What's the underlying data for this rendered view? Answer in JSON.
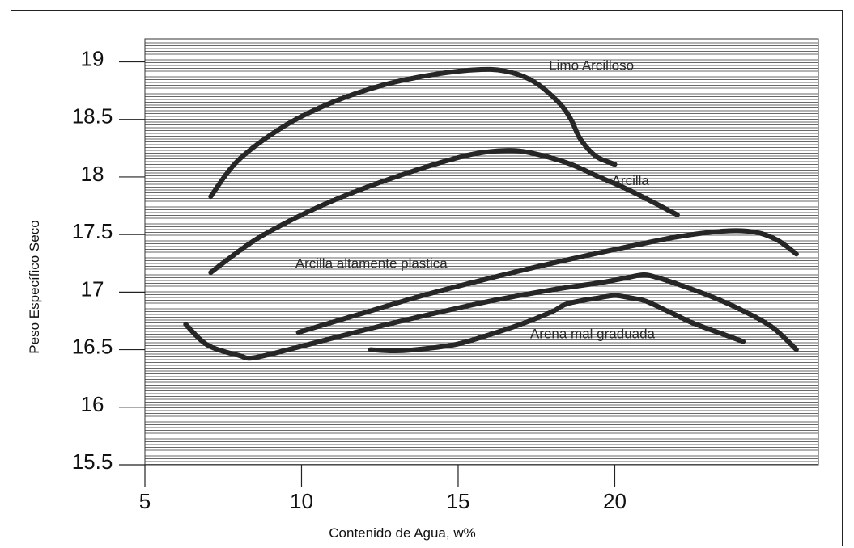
{
  "chart_data": {
    "type": "line",
    "title": "",
    "xlabel": "Contenido de Agua, w%",
    "ylabel": "Peso Específico Seco",
    "xlim": [
      5,
      26.5
    ],
    "ylim": [
      15.5,
      19.2
    ],
    "x_ticks": [
      5,
      10,
      15,
      20
    ],
    "x_tick_labels": [
      "5",
      "10",
      "15",
      "20"
    ],
    "y_ticks": [
      15.5,
      16,
      16.5,
      17,
      17.5,
      18,
      18.5,
      19
    ],
    "y_tick_labels": [
      "15.5",
      "16",
      "16.5",
      "17",
      "17.5",
      "18",
      "18.5",
      "19"
    ],
    "background": "horizontal-line-hatch",
    "series": [
      {
        "name": "Limo Arcilloso",
        "label_at": [
          17.9,
          18.93
        ],
        "points": [
          [
            7.1,
            17.83
          ],
          [
            8.0,
            18.15
          ],
          [
            9.5,
            18.45
          ],
          [
            11.0,
            18.65
          ],
          [
            12.5,
            18.79
          ],
          [
            14.0,
            18.88
          ],
          [
            15.5,
            18.93
          ],
          [
            16.5,
            18.92
          ],
          [
            17.4,
            18.83
          ],
          [
            18.2,
            18.65
          ],
          [
            18.6,
            18.5
          ],
          [
            18.9,
            18.33
          ],
          [
            19.4,
            18.18
          ],
          [
            20.0,
            18.11
          ]
        ]
      },
      {
        "name": "Arcilla",
        "label_at": [
          19.9,
          17.93
        ],
        "points": [
          [
            7.1,
            17.17
          ],
          [
            8.5,
            17.45
          ],
          [
            10.0,
            17.67
          ],
          [
            11.5,
            17.85
          ],
          [
            13.0,
            18.0
          ],
          [
            14.5,
            18.13
          ],
          [
            15.5,
            18.2
          ],
          [
            16.5,
            18.23
          ],
          [
            17.3,
            18.21
          ],
          [
            18.5,
            18.12
          ],
          [
            19.5,
            18.0
          ],
          [
            20.5,
            17.88
          ],
          [
            22.0,
            17.67
          ]
        ]
      },
      {
        "name": "Arcilla altamente plastica",
        "label_at": [
          9.8,
          17.21
        ],
        "points": [
          [
            9.9,
            16.65
          ],
          [
            12.0,
            16.82
          ],
          [
            14.0,
            16.98
          ],
          [
            16.0,
            17.12
          ],
          [
            18.0,
            17.25
          ],
          [
            20.0,
            17.37
          ],
          [
            22.0,
            17.48
          ],
          [
            23.5,
            17.53
          ],
          [
            24.5,
            17.52
          ],
          [
            25.2,
            17.45
          ],
          [
            25.8,
            17.33
          ]
        ]
      },
      {
        "name": "",
        "points": [
          [
            6.3,
            16.72
          ],
          [
            7.0,
            16.54
          ],
          [
            8.0,
            16.45
          ],
          [
            8.5,
            16.43
          ],
          [
            10.0,
            16.53
          ],
          [
            12.0,
            16.67
          ],
          [
            14.0,
            16.8
          ],
          [
            16.0,
            16.92
          ],
          [
            18.0,
            17.02
          ],
          [
            19.5,
            17.08
          ],
          [
            20.3,
            17.12
          ],
          [
            20.9,
            17.15
          ],
          [
            21.3,
            17.13
          ],
          [
            22.0,
            17.07
          ],
          [
            23.0,
            16.97
          ],
          [
            24.0,
            16.85
          ],
          [
            25.0,
            16.7
          ],
          [
            25.8,
            16.5
          ]
        ]
      },
      {
        "name": "Arena mal graduada",
        "label_at": [
          17.3,
          16.6
        ],
        "points": [
          [
            12.2,
            16.5
          ],
          [
            13.0,
            16.49
          ],
          [
            14.0,
            16.51
          ],
          [
            15.0,
            16.55
          ],
          [
            16.0,
            16.63
          ],
          [
            17.0,
            16.72
          ],
          [
            18.0,
            16.83
          ],
          [
            18.5,
            16.9
          ],
          [
            19.5,
            16.95
          ],
          [
            20.0,
            16.97
          ],
          [
            20.5,
            16.95
          ],
          [
            21.0,
            16.92
          ],
          [
            21.8,
            16.82
          ],
          [
            22.5,
            16.73
          ],
          [
            23.5,
            16.63
          ],
          [
            24.1,
            16.57
          ]
        ]
      }
    ]
  }
}
